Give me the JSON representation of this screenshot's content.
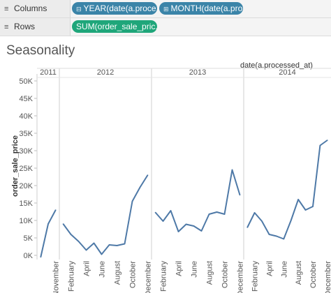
{
  "shelves": {
    "columns": {
      "label": "Columns",
      "icon": "≡",
      "pills": [
        {
          "text": "YEAR(date(a.proce..",
          "icon": "⊟"
        },
        {
          "text": "MONTH(date(a.pro..",
          "icon": "⊞"
        }
      ]
    },
    "rows": {
      "label": "Rows",
      "icon": "≡",
      "pills": [
        {
          "text": "SUM(order_sale_pric..",
          "icon": ""
        }
      ]
    }
  },
  "colors": {
    "pill_dimension": "#3b84a8",
    "pill_measure": "#1fa67a",
    "line": "#4e79a7"
  },
  "worksheet": {
    "title": "Seasonality"
  },
  "chart_data": {
    "type": "line",
    "header_label": "date(a.processed_at)",
    "ylabel": "order_sale_price",
    "ylim": [
      0,
      50000
    ],
    "yticks": [
      "0K",
      "5K",
      "10K",
      "15K",
      "20K",
      "25K",
      "30K",
      "35K",
      "40K",
      "45K",
      "50K"
    ],
    "years": [
      {
        "name": "2011",
        "months": [
          "Sep",
          "Oct",
          "Nov"
        ],
        "tick_labels": [
          "November"
        ],
        "tick_months": [
          "Nov"
        ],
        "values": [
          -500,
          9000,
          13000
        ]
      },
      {
        "name": "2012",
        "months": [
          "Jan",
          "Feb",
          "Mar",
          "Apr",
          "May",
          "Jun",
          "Jul",
          "Aug",
          "Sep",
          "Oct",
          "Nov",
          "Dec"
        ],
        "tick_labels": [
          "February",
          "April",
          "June",
          "August",
          "October",
          "December"
        ],
        "tick_months": [
          "Feb",
          "Apr",
          "Jun",
          "Aug",
          "Oct",
          "Dec"
        ],
        "values": [
          9000,
          6000,
          4000,
          1500,
          3500,
          300,
          3000,
          2800,
          3300,
          15500,
          19500,
          23000
        ]
      },
      {
        "name": "2013",
        "months": [
          "Jan",
          "Feb",
          "Mar",
          "Apr",
          "May",
          "Jun",
          "Jul",
          "Aug",
          "Sep",
          "Oct",
          "Nov",
          "Dec"
        ],
        "tick_labels": [
          "February",
          "April",
          "June",
          "August",
          "October",
          "December"
        ],
        "tick_months": [
          "Feb",
          "Apr",
          "Jun",
          "Aug",
          "Oct",
          "Dec"
        ],
        "values": [
          12300,
          9800,
          12800,
          6800,
          8900,
          8400,
          7000,
          11800,
          12400,
          11800,
          24500,
          17300
        ]
      },
      {
        "name": "2014",
        "months": [
          "Jan",
          "Feb",
          "Mar",
          "Apr",
          "May",
          "Jun",
          "Jul",
          "Aug",
          "Sep",
          "Oct",
          "Nov",
          "Dec"
        ],
        "tick_labels": [
          "February",
          "April",
          "June",
          "August",
          "October",
          "December"
        ],
        "tick_months": [
          "Feb",
          "Apr",
          "Jun",
          "Aug",
          "Oct",
          "Dec"
        ],
        "values": [
          8000,
          12200,
          9800,
          6000,
          5500,
          4700,
          10000,
          16000,
          13000,
          14000,
          31500,
          33000
        ]
      }
    ]
  }
}
